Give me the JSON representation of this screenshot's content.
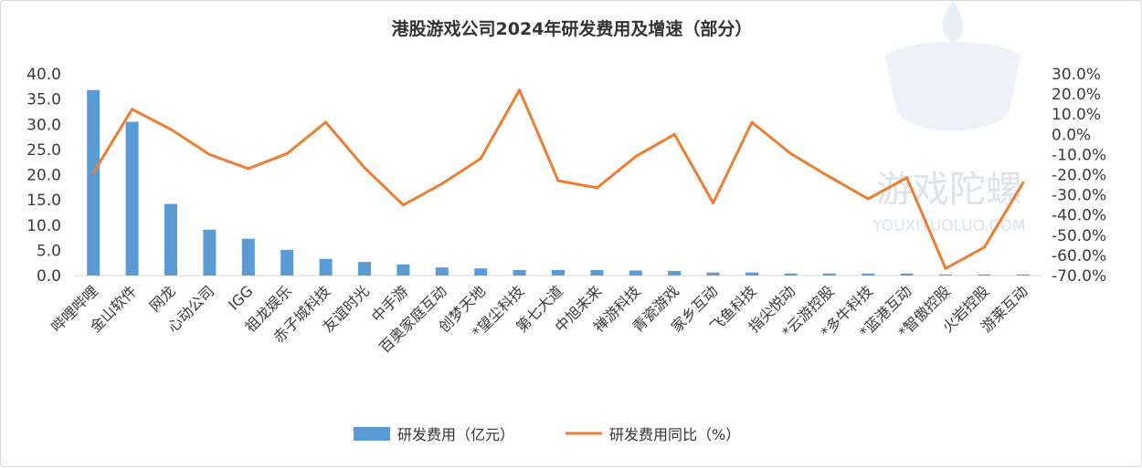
{
  "chart_data": {
    "type": "bar",
    "title": "港股游戏公司2024年研发费用及增速（部分）",
    "categories": [
      "哔哩哔哩",
      "金山软件",
      "网龙",
      "心动公司",
      "IGG",
      "祖龙娱乐",
      "赤子城科技",
      "友谊时光",
      "中手游",
      "百奥家庭互动",
      "创梦天地",
      "*望尘科技",
      "第七大道",
      "中旭未来",
      "禅游科技",
      "青瓷游戏",
      "家乡互动",
      "飞鱼科技",
      "指尖悦动",
      "*云游控股",
      "*多牛科技",
      "*蓝港互动",
      "*智傲控股",
      "火岩控股",
      "游莱互动"
    ],
    "series": [
      {
        "name": "研发费用（亿元）",
        "type": "bar",
        "axis": "left",
        "values": [
          36.8,
          30.5,
          14.2,
          9.1,
          7.3,
          5.1,
          3.3,
          2.7,
          2.2,
          1.6,
          1.4,
          1.1,
          1.1,
          1.1,
          1.0,
          0.9,
          0.6,
          0.6,
          0.4,
          0.4,
          0.4,
          0.4,
          0.2,
          0.2,
          0.2
        ]
      },
      {
        "name": "研发费用同比（%）",
        "type": "line",
        "axis": "right",
        "values": [
          -19.0,
          12.5,
          2.5,
          -10.0,
          -17.0,
          -9.5,
          6.0,
          -16.5,
          -35.0,
          -24.5,
          -12.0,
          22.0,
          -23.0,
          -26.5,
          -11.0,
          0.0,
          -34.0,
          6.0,
          -9.5,
          -21.0,
          -32.0,
          -21.5,
          -66.5,
          -56.0,
          -24.0
        ]
      }
    ],
    "y_left": {
      "ylim": [
        0,
        40
      ],
      "ticks": [
        "0.0",
        "5.0",
        "10.0",
        "15.0",
        "20.0",
        "25.0",
        "30.0",
        "35.0",
        "40.0"
      ]
    },
    "y_right": {
      "ylim": [
        -70,
        30
      ],
      "ticks": [
        "-70.0%",
        "-60.0%",
        "-50.0%",
        "-40.0%",
        "-30.0%",
        "-20.0%",
        "-10.0%",
        "0.0%",
        "10.0%",
        "20.0%",
        "30.0%"
      ]
    },
    "grid": false,
    "legend_position": "bottom",
    "colors": {
      "bar": "#5b9bd5",
      "line": "#ed7d31"
    }
  },
  "legend": {
    "bar_label": "研发费用（亿元）",
    "line_label": "研发费用同比（%）"
  },
  "watermark": {
    "cn": "游戏陀螺",
    "en": "YOUXITUOLUO.COM"
  }
}
